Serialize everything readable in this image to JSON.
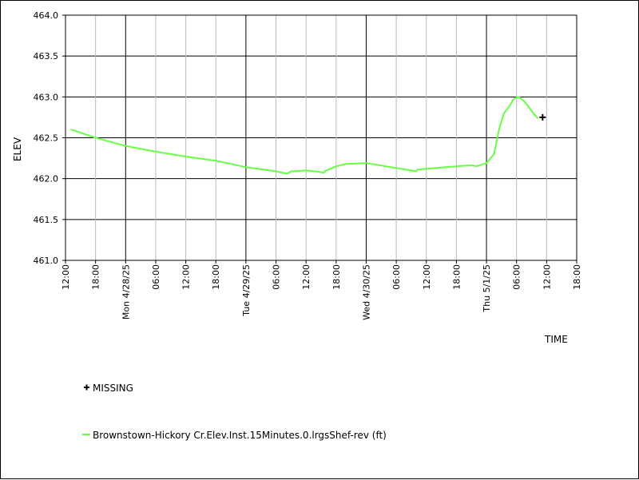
{
  "chart_data": {
    "type": "line",
    "ylabel": "ELEV",
    "xlabel": "TIME",
    "ylim": [
      461.0,
      464.0
    ],
    "yticks": [
      "461.0",
      "461.5",
      "462.0",
      "462.5",
      "463.0",
      "463.5",
      "464.0"
    ],
    "xlim_hours": [
      0,
      102
    ],
    "xticks": [
      {
        "h": 0,
        "label": "12:00",
        "major": false
      },
      {
        "h": 6,
        "label": "18:00",
        "major": false
      },
      {
        "h": 12,
        "label": "Mon 4/28/25",
        "major": true
      },
      {
        "h": 18,
        "label": "06:00",
        "major": false
      },
      {
        "h": 24,
        "label": "12:00",
        "major": false
      },
      {
        "h": 30,
        "label": "18:00",
        "major": false
      },
      {
        "h": 36,
        "label": "Tue 4/29/25",
        "major": true
      },
      {
        "h": 42,
        "label": "06:00",
        "major": false
      },
      {
        "h": 48,
        "label": "12:00",
        "major": false
      },
      {
        "h": 54,
        "label": "18:00",
        "major": false
      },
      {
        "h": 60,
        "label": "Wed 4/30/25",
        "major": true
      },
      {
        "h": 66,
        "label": "06:00",
        "major": false
      },
      {
        "h": 72,
        "label": "12:00",
        "major": false
      },
      {
        "h": 78,
        "label": "18:00",
        "major": false
      },
      {
        "h": 84,
        "label": "Thu 5/1/25",
        "major": true
      },
      {
        "h": 90,
        "label": "06:00",
        "major": false
      },
      {
        "h": 96,
        "label": "12:00",
        "major": false
      },
      {
        "h": 102,
        "label": "18:00",
        "major": false
      }
    ],
    "grid": true,
    "series": [
      {
        "name": "Brownstown-Hickory Cr.Elev.Inst.15Minutes.0.lrgsShef-rev (ft)",
        "color": "#66ff44",
        "points": [
          [
            1.2,
            462.6
          ],
          [
            6,
            462.5
          ],
          [
            12,
            462.4
          ],
          [
            18,
            462.33
          ],
          [
            24,
            462.27
          ],
          [
            30,
            462.22
          ],
          [
            36,
            462.14
          ],
          [
            42,
            462.09
          ],
          [
            44.2,
            462.06
          ],
          [
            45,
            462.09
          ],
          [
            48,
            462.1
          ],
          [
            51,
            462.08
          ],
          [
            51.5,
            462.07
          ],
          [
            52,
            462.1
          ],
          [
            54,
            462.15
          ],
          [
            56,
            462.18
          ],
          [
            60,
            462.19
          ],
          [
            64,
            462.15
          ],
          [
            67,
            462.12
          ],
          [
            70,
            462.09
          ],
          [
            70.2,
            462.11
          ],
          [
            72,
            462.12
          ],
          [
            76,
            462.14
          ],
          [
            80,
            462.16
          ],
          [
            81.5,
            462.16
          ],
          [
            82,
            462.15
          ],
          [
            84,
            462.19
          ],
          [
            85.5,
            462.3
          ],
          [
            86.5,
            462.6
          ],
          [
            87.5,
            462.8
          ],
          [
            88.5,
            462.88
          ],
          [
            89.5,
            462.98
          ],
          [
            90.5,
            463.0
          ],
          [
            91.5,
            462.95
          ],
          [
            92.5,
            462.87
          ],
          [
            93.5,
            462.79
          ],
          [
            94.2,
            462.74
          ]
        ]
      }
    ],
    "missing_points": [
      [
        95.2,
        462.75
      ]
    ],
    "legend": {
      "missing_label": "MISSING",
      "series_label": "Brownstown-Hickory Cr.Elev.Inst.15Minutes.0.lrgsShef-rev (ft)"
    }
  }
}
